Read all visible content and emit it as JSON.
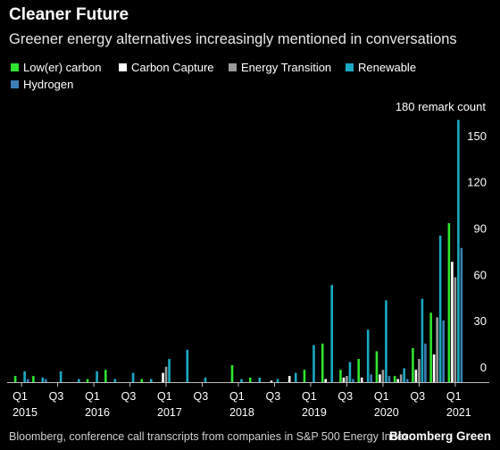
{
  "header": {
    "title": "Cleaner Future",
    "subtitle": "Greener energy alternatives increasingly mentioned in conversations"
  },
  "footer": {
    "source": "Bloomberg, conference call transcripts from companies in S&P 500 Energy Index",
    "brand": "Bloomberg Green"
  },
  "chart_data": {
    "type": "bar",
    "title": "Cleaner Future",
    "subtitle": "Greener energy alternatives increasingly mentioned in conversations",
    "xlabel": "",
    "ylabel": "",
    "unit_label": "180 remark count",
    "ylim": [
      0,
      180
    ],
    "yticks": [
      0,
      30,
      60,
      90,
      120,
      150
    ],
    "grid": false,
    "legend_position": "top",
    "categories": [
      "Q1 2015",
      "Q2 2015",
      "Q3 2015",
      "Q4 2015",
      "Q1 2016",
      "Q2 2016",
      "Q3 2016",
      "Q4 2016",
      "Q1 2017",
      "Q2 2017",
      "Q3 2017",
      "Q4 2017",
      "Q1 2018",
      "Q2 2018",
      "Q3 2018",
      "Q4 2018",
      "Q1 2019",
      "Q2 2019",
      "Q3 2019",
      "Q4 2019",
      "Q1 2020",
      "Q2 2020",
      "Q3 2020",
      "Q4 2020",
      "Q1 2021"
    ],
    "x_tick_labels": [
      {
        "index": 0,
        "quarter": "Q1",
        "year": "2015"
      },
      {
        "index": 2,
        "quarter": "Q3",
        "year": ""
      },
      {
        "index": 4,
        "quarter": "Q1",
        "year": "2016"
      },
      {
        "index": 6,
        "quarter": "Q3",
        "year": ""
      },
      {
        "index": 8,
        "quarter": "Q1",
        "year": "2017"
      },
      {
        "index": 10,
        "quarter": "Q3",
        "year": ""
      },
      {
        "index": 12,
        "quarter": "Q1",
        "year": "2018"
      },
      {
        "index": 14,
        "quarter": "Q3",
        "year": ""
      },
      {
        "index": 16,
        "quarter": "Q1",
        "year": "2019"
      },
      {
        "index": 18,
        "quarter": "Q3",
        "year": ""
      },
      {
        "index": 20,
        "quarter": "Q1",
        "year": "2020"
      },
      {
        "index": 22,
        "quarter": "Q3",
        "year": ""
      },
      {
        "index": 24,
        "quarter": "Q1",
        "year": "2021"
      }
    ],
    "series": [
      {
        "name": "Low(er) carbon",
        "color": "#2ee62e",
        "values": [
          4,
          4,
          0,
          0,
          2,
          8,
          0,
          2,
          0,
          0,
          0,
          0,
          11,
          3,
          0,
          0,
          8,
          25,
          8,
          15,
          20,
          4,
          22,
          45,
          103
        ]
      },
      {
        "name": "Carbon Capture",
        "color": "#ffffff",
        "values": [
          0,
          0,
          0,
          0,
          0,
          0,
          0,
          0,
          6,
          0,
          0,
          0,
          0,
          0,
          1,
          4,
          0,
          2,
          3,
          3,
          5,
          2,
          8,
          18,
          78
        ]
      },
      {
        "name": "Energy Transition",
        "color": "#9a9a9a",
        "values": [
          0,
          0,
          0,
          0,
          0,
          0,
          0,
          0,
          10,
          0,
          0,
          0,
          0,
          0,
          0,
          0,
          0,
          0,
          4,
          0,
          8,
          5,
          15,
          42,
          68
        ]
      },
      {
        "name": "Renewable",
        "color": "#1aa9c2",
        "values": [
          7,
          3,
          7,
          2,
          7,
          2,
          6,
          2,
          15,
          21,
          3,
          0,
          2,
          3,
          2,
          6,
          24,
          63,
          13,
          34,
          53,
          9,
          54,
          95,
          170
        ]
      },
      {
        "name": "Hydrogen",
        "color": "#3b7fb5",
        "values": [
          2,
          2,
          0,
          0,
          0,
          0,
          0,
          0,
          0,
          0,
          0,
          0,
          0,
          0,
          0,
          0,
          0,
          0,
          2,
          5,
          4,
          2,
          25,
          40,
          87
        ]
      }
    ]
  }
}
